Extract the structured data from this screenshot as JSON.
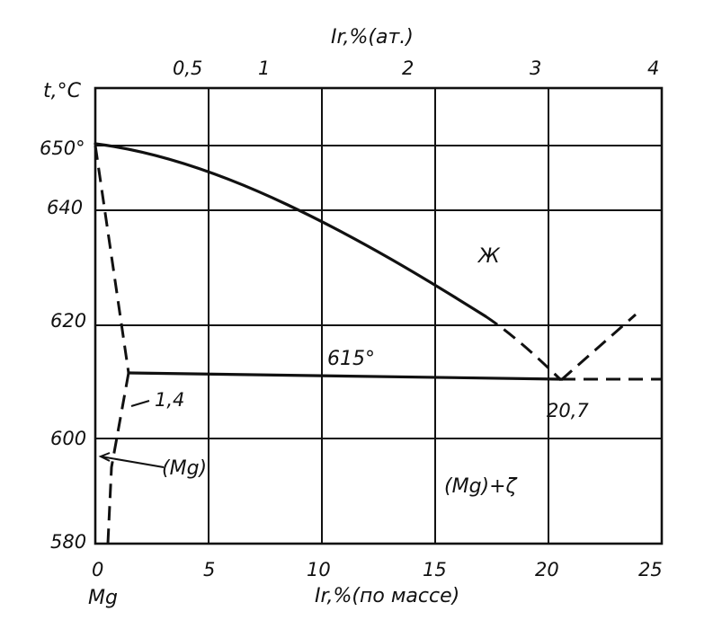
{
  "diagram": {
    "top_axis_title": "Ir,%(ат.)",
    "top_ticks": [
      "0,5",
      "1",
      "2",
      "3",
      "4"
    ],
    "left_axis_title": "t,°C",
    "y_ticks": [
      "650°",
      "640",
      "620",
      "600",
      "580"
    ],
    "x_ticks": [
      "0",
      "5",
      "10",
      "15",
      "20",
      "25"
    ],
    "bottom_axis_title": "Ir,%(по массе)",
    "element_label": "Mg",
    "liquid_region": "Ж",
    "eutectic_temp": "615°",
    "mg_solubility": "1,4",
    "eutectic_composition": "20,7",
    "mg_phase": "(Mg)",
    "two_phase_region": "(Mg)+ζ"
  }
}
